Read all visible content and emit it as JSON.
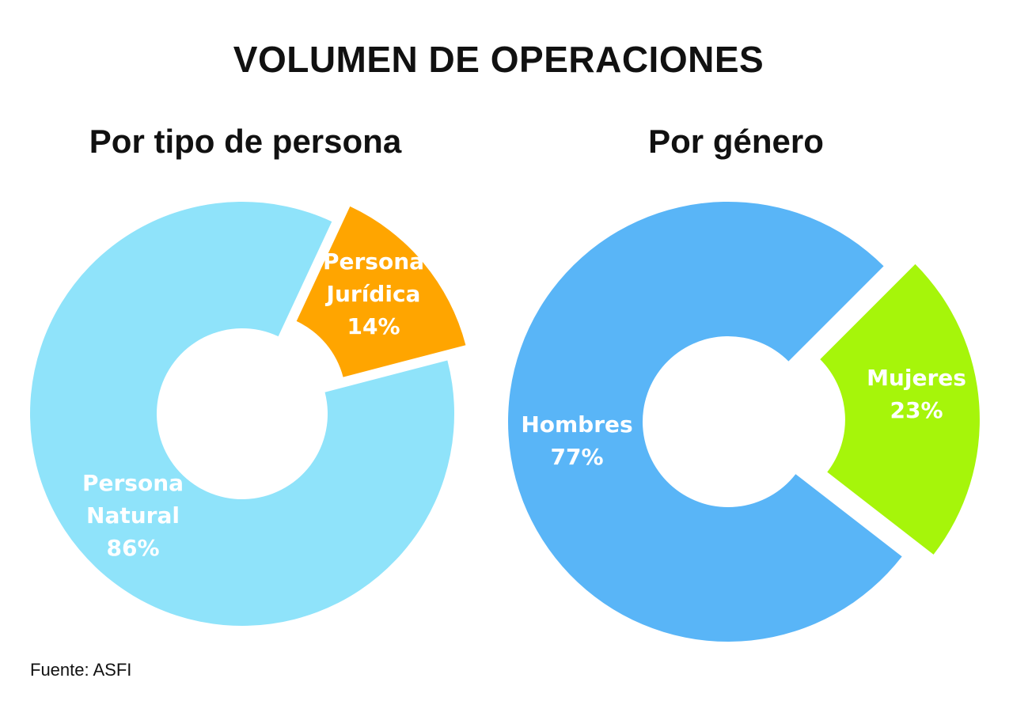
{
  "page": {
    "title": "VOLUMEN DE OPERACIONES",
    "source": "Fuente: ASFI"
  },
  "chart_data": [
    {
      "type": "pie",
      "style": "donut",
      "title": "Por tipo de persona",
      "slices": [
        {
          "label_lines": [
            "Persona",
            "Jurídica",
            "14%"
          ],
          "value": 14,
          "color": "#FFA500",
          "exploded": true
        },
        {
          "label_lines": [
            "Persona",
            "Natural",
            "86%"
          ],
          "value": 86,
          "color": "#8FE3FA",
          "exploded": false
        }
      ]
    },
    {
      "type": "pie",
      "style": "donut",
      "title": "Por género",
      "slices": [
        {
          "label_lines": [
            "Mujeres",
            "23%"
          ],
          "value": 23,
          "color": "#A6F50A",
          "exploded": true
        },
        {
          "label_lines": [
            "Hombres",
            "77%"
          ],
          "value": 77,
          "color": "#59B5F7",
          "exploded": false
        }
      ]
    }
  ]
}
